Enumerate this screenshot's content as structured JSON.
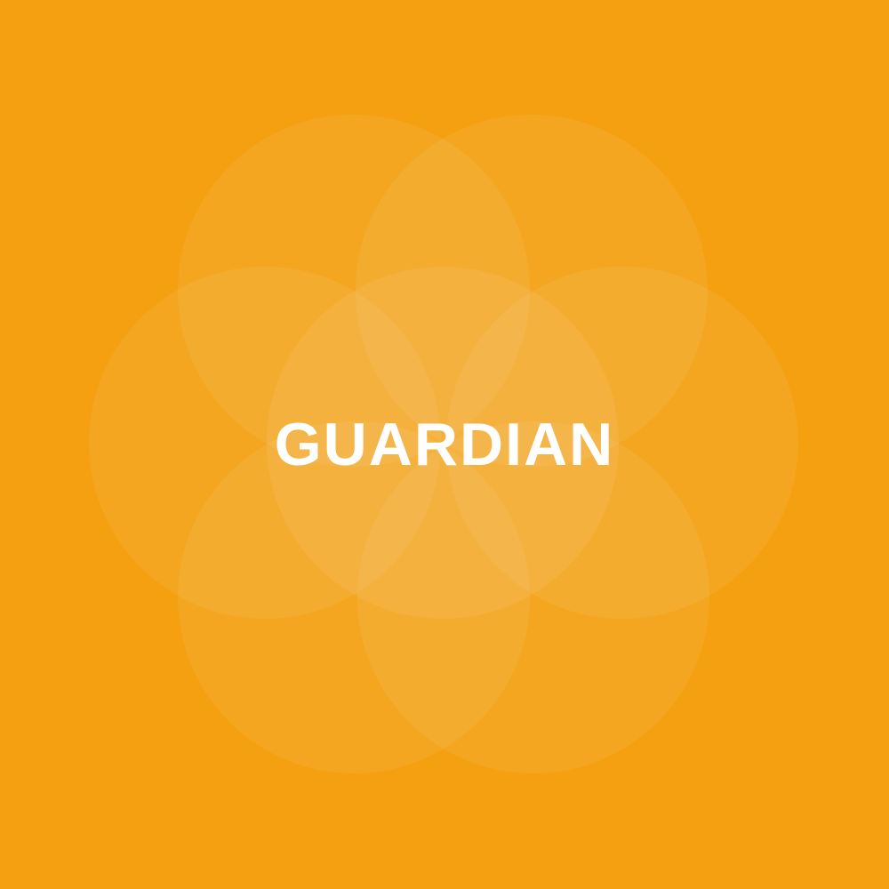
{
  "background_color": "#F4A010",
  "circle_color": "#FFFFFF",
  "title": "GUARDIAN",
  "title_color": "#FFFFFF"
}
